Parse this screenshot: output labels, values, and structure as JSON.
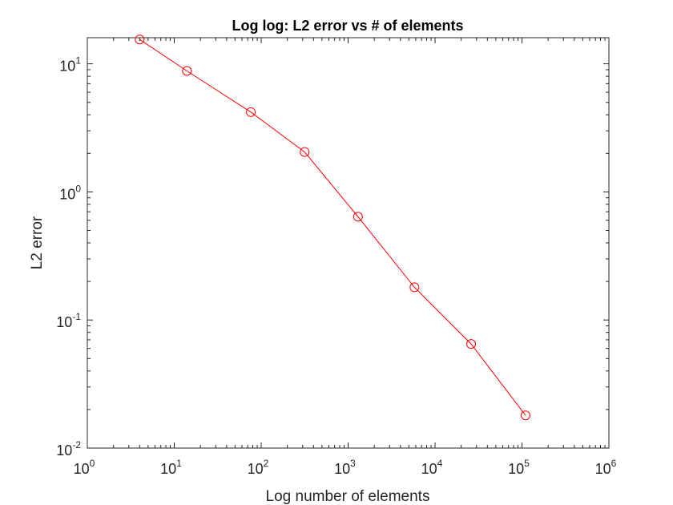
{
  "chart_data": {
    "type": "line",
    "title": "Log log: L2 error vs # of elements",
    "xlabel": "Log number of elements",
    "ylabel": "L2 error",
    "xscale": "log",
    "yscale": "log",
    "xlim": [
      1,
      1000000
    ],
    "ylim": [
      0.01,
      16
    ],
    "x_ticks": [
      {
        "base": "10",
        "exp": "0",
        "value": 1
      },
      {
        "base": "10",
        "exp": "1",
        "value": 10
      },
      {
        "base": "10",
        "exp": "2",
        "value": 100
      },
      {
        "base": "10",
        "exp": "3",
        "value": 1000
      },
      {
        "base": "10",
        "exp": "4",
        "value": 10000
      },
      {
        "base": "10",
        "exp": "5",
        "value": 100000
      },
      {
        "base": "10",
        "exp": "6",
        "value": 1000000
      }
    ],
    "y_ticks": [
      {
        "base": "10",
        "exp": "-2",
        "value": 0.01
      },
      {
        "base": "10",
        "exp": "-1",
        "value": 0.1
      },
      {
        "base": "10",
        "exp": "0",
        "value": 1
      },
      {
        "base": "10",
        "exp": "1",
        "value": 10
      }
    ],
    "grid": false,
    "series": [
      {
        "color": "#ff0000",
        "marker": "circle",
        "x": [
          4,
          14,
          76,
          316,
          1300,
          5800,
          26000,
          110000
        ],
        "y": [
          15.5,
          8.8,
          4.2,
          2.05,
          0.64,
          0.18,
          0.065,
          0.018
        ]
      }
    ]
  }
}
